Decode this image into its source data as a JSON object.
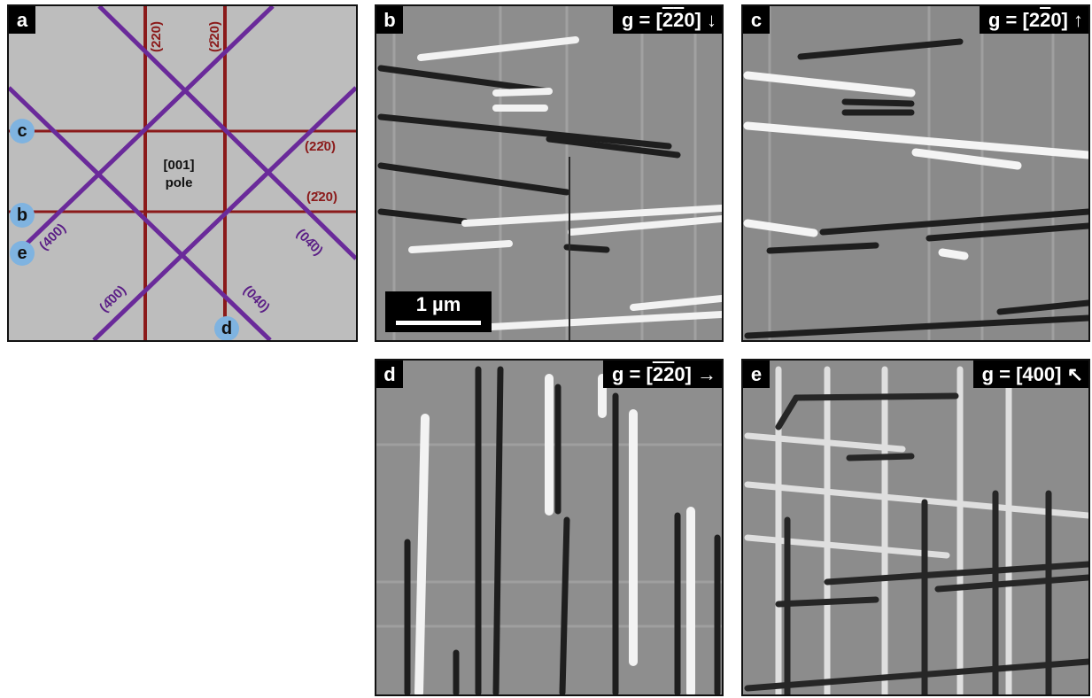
{
  "panels": {
    "a": {
      "label": "a",
      "pole": {
        "line1": "[001]",
        "line2": "pole"
      },
      "planes": {
        "red_vertical_left": "(220)",
        "red_vertical_right": "(2̄20)",
        "red_horizontal_top": "(22̄0)",
        "red_horizontal_bottom": "(2̄20)",
        "purple_left": "(400)",
        "purple_right": "(04̄0)",
        "purple_bottom_left": "(4̄00)",
        "purple_bottom_right": "(040)"
      },
      "markers": [
        "c",
        "b",
        "e",
        "d"
      ]
    },
    "b": {
      "label": "b",
      "g_prefix": "g = [",
      "g_index": "2̄2̄0",
      "g_suffix": "]",
      "arrow": "↓",
      "g_overlined": "22"
    },
    "c": {
      "label": "c",
      "g_prefix": "g = [2",
      "g_index": "2",
      "g_suffix": "0]",
      "arrow": "↑"
    },
    "d": {
      "label": "d",
      "g_prefix": "g = [",
      "g_index": "22",
      "g_suffix": "0]",
      "arrow": "→"
    },
    "e": {
      "label": "e",
      "g_prefix": "g = [400]",
      "arrow": "↖"
    }
  },
  "scalebar": {
    "text": "1 µm"
  },
  "colors": {
    "red_lines": "#8b1a1a",
    "purple_lines": "#6a2a9a",
    "marker": "#7fb3e0",
    "panel_bg": "#bdbdbd"
  }
}
